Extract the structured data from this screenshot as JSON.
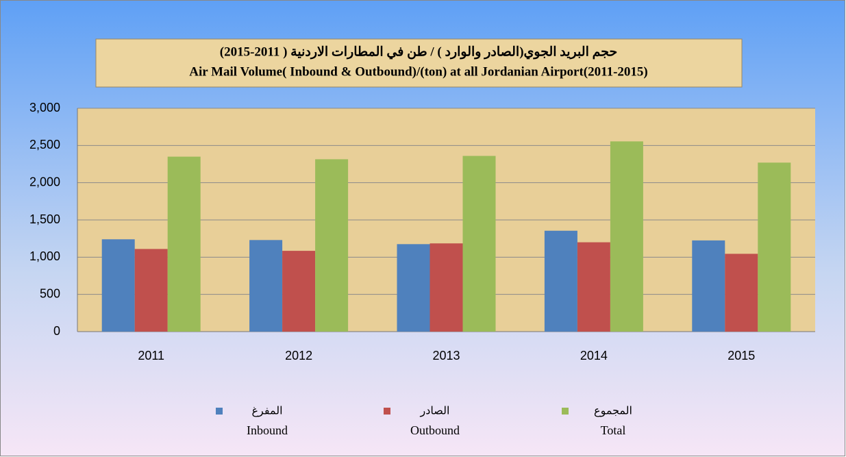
{
  "chart_data": {
    "type": "bar",
    "title": "حجم البريد الجوي(الصادر والوارد ) / طن في المطارات الاردنية ( 2011-2015)",
    "subtitle": "Air Mail Volume( Inbound & Outbound)/(ton) at all Jordanian Airport(2011-2015)",
    "categories": [
      "2011",
      "2012",
      "2013",
      "2014",
      "2015"
    ],
    "series": [
      {
        "name": "المفرغ",
        "name_en": "Inbound",
        "color": "#4f81bd",
        "values": [
          1240,
          1230,
          1175,
          1355,
          1225
        ]
      },
      {
        "name": "الصادر",
        "name_en": "Outbound",
        "color": "#c0504d",
        "values": [
          1110,
          1085,
          1185,
          1200,
          1045
        ]
      },
      {
        "name": "المجموع",
        "name_en": "Total",
        "color": "#9bbb59",
        "values": [
          2350,
          2315,
          2360,
          2555,
          2270
        ]
      }
    ],
    "ylim": [
      0,
      3000
    ],
    "yticks": [
      0,
      500,
      {
        "value": 1000,
        "label": "1,000"
      },
      {
        "value": 1500,
        "label": "1,500"
      },
      {
        "value": 2000,
        "label": "2,000"
      },
      {
        "value": 2500,
        "label": "2,500"
      },
      {
        "value": 3000,
        "label": "3,000"
      }
    ],
    "grid": true,
    "legend": "bottom"
  }
}
